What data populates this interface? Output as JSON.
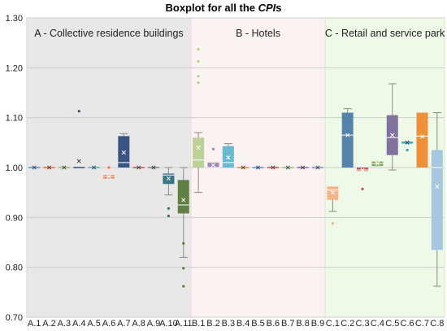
{
  "chart_data": {
    "type": "boxplot",
    "title": {
      "prefix": "Boxplot for all the ",
      "em": "CPI",
      "suffix": "s"
    },
    "ylim": [
      0.7,
      1.3
    ],
    "yticks": [
      "0.70",
      "0.80",
      "0.90",
      "1.00",
      "1.10",
      "1.20",
      "1.30"
    ],
    "grid": true,
    "groups": [
      {
        "label": "A - Collective residence buildings",
        "bg": "#e8e8e8",
        "border": "#d6d6d6",
        "categories": [
          "A.1",
          "A.2",
          "A.3",
          "A.4",
          "A.5",
          "A.6",
          "A.7",
          "A.8",
          "A.9",
          "A.10",
          "A.11"
        ]
      },
      {
        "label": "B - Hotels",
        "bg": "#fbf3f2",
        "border": "#f0dcd9",
        "categories": [
          "B.1",
          "B.2",
          "B.3",
          "B.4",
          "B.5",
          "B.6",
          "B.7",
          "B.8",
          "B.9"
        ]
      },
      {
        "label": "C - Retail and service park",
        "bg": "#eef9e8",
        "border": "#d2efc4",
        "categories": [
          "C.1",
          "C.2",
          "C.3",
          "C.4",
          "C.5",
          "C.6",
          "C.7",
          "C.8"
        ]
      }
    ],
    "series": [
      {
        "cat": "A.1",
        "color": "#5b8bd6",
        "q1": 1.0,
        "median": 1.0,
        "q3": 1.0,
        "whisker_low": 1.0,
        "whisker_high": 1.0,
        "mean": 1.0,
        "outliers": []
      },
      {
        "cat": "A.2",
        "color": "#e06a3a",
        "q1": 1.0,
        "median": 1.0,
        "q3": 1.0,
        "whisker_low": 1.0,
        "whisker_high": 1.0,
        "mean": 1.0,
        "outliers": []
      },
      {
        "cat": "A.3",
        "color": "#9bb87a",
        "q1": 1.0,
        "median": 1.0,
        "q3": 1.0,
        "whisker_low": 1.0,
        "whisker_high": 1.0,
        "mean": 1.0,
        "outliers": []
      },
      {
        "cat": "A.4",
        "color": "#3c4f73",
        "q1": 1.0,
        "median": 1.0,
        "q3": 1.0,
        "whisker_low": 1.0,
        "whisker_high": 1.0,
        "mean": 1.013,
        "outliers": [
          1.113
        ]
      },
      {
        "cat": "A.5",
        "color": "#5aa3c8",
        "q1": 1.0,
        "median": 1.0,
        "q3": 1.0,
        "whisker_low": 1.0,
        "whisker_high": 1.0,
        "mean": 1.0,
        "outliers": []
      },
      {
        "cat": "A.6",
        "color": "#e8803d",
        "q1": 0.978,
        "median": 0.982,
        "q3": 0.985,
        "whisker_low": 0.978,
        "whisker_high": 0.985,
        "mean": 0.982,
        "outliers": [
          1.0
        ]
      },
      {
        "cat": "A.7",
        "color": "#2e4e7e",
        "q1": 1.0,
        "median": 1.01,
        "q3": 1.063,
        "whisker_low": 1.0,
        "whisker_high": 1.068,
        "mean": 1.03,
        "outliers": []
      },
      {
        "cat": "A.8",
        "color": "#c0504d",
        "q1": 1.0,
        "median": 1.0,
        "q3": 1.0,
        "whisker_low": 1.0,
        "whisker_high": 1.0,
        "mean": 1.0,
        "outliers": []
      },
      {
        "cat": "A.9",
        "color": "#7f7f7f",
        "q1": 1.0,
        "median": 1.0,
        "q3": 1.0,
        "whisker_low": 1.0,
        "whisker_high": 1.0,
        "mean": 1.0,
        "outliers": []
      },
      {
        "cat": "A.10",
        "color": "#2f6f7c",
        "q1": 0.967,
        "median": 0.985,
        "q3": 0.988,
        "whisker_low": 0.945,
        "whisker_high": 1.0,
        "mean": 0.978,
        "outliers": [
          0.918,
          0.903
        ]
      },
      {
        "cat": "A.11",
        "color": "#5a7a3a",
        "q1": 0.908,
        "median": 0.925,
        "q3": 0.975,
        "whisker_low": 0.82,
        "whisker_high": 1.0,
        "mean": 0.935,
        "outliers": [
          0.848,
          0.798,
          0.762
        ]
      },
      {
        "cat": "B.1",
        "color": "#b7cf8f",
        "q1": 1.0,
        "median": 1.015,
        "q3": 1.06,
        "whisker_low": 0.95,
        "whisker_high": 1.07,
        "mean": 1.04,
        "outliers": [
          1.237,
          1.213,
          1.183,
          1.17
        ]
      },
      {
        "cat": "B.2",
        "color": "#9b83b7",
        "q1": 1.0,
        "median": 1.0,
        "q3": 1.01,
        "whisker_low": 1.0,
        "whisker_high": 1.01,
        "mean": 1.005,
        "outliers": [
          1.037
        ]
      },
      {
        "cat": "B.3",
        "color": "#5fb7cf",
        "q1": 1.0,
        "median": 1.01,
        "q3": 1.043,
        "whisker_low": 1.0,
        "whisker_high": 1.048,
        "mean": 1.02,
        "outliers": []
      },
      {
        "cat": "B.4",
        "color": "#e8803d",
        "q1": 1.0,
        "median": 1.0,
        "q3": 1.0,
        "whisker_low": 1.0,
        "whisker_high": 1.0,
        "mean": 1.0,
        "outliers": []
      },
      {
        "cat": "B.5",
        "color": "#5b8bd6",
        "q1": 1.0,
        "median": 1.0,
        "q3": 1.0,
        "whisker_low": 1.0,
        "whisker_high": 1.0,
        "mean": 1.0,
        "outliers": []
      },
      {
        "cat": "B.6",
        "color": "#c0504d",
        "q1": 1.0,
        "median": 1.0,
        "q3": 1.0,
        "whisker_low": 1.0,
        "whisker_high": 1.0,
        "mean": 1.0,
        "outliers": []
      },
      {
        "cat": "B.7",
        "color": "#9bb87a",
        "q1": 1.0,
        "median": 1.0,
        "q3": 1.0,
        "whisker_low": 1.0,
        "whisker_high": 1.0,
        "mean": 1.0,
        "outliers": []
      },
      {
        "cat": "B.8",
        "color": "#8064a2",
        "q1": 1.0,
        "median": 1.0,
        "q3": 1.0,
        "whisker_low": 1.0,
        "whisker_high": 1.0,
        "mean": 1.0,
        "outliers": []
      },
      {
        "cat": "B.9",
        "color": "#5aa3c8",
        "q1": 1.0,
        "median": 1.0,
        "q3": 1.0,
        "whisker_low": 1.0,
        "whisker_high": 1.0,
        "mean": 1.0,
        "outliers": []
      },
      {
        "cat": "C.1",
        "color": "#f4b183",
        "q1": 0.935,
        "median": 0.955,
        "q3": 0.962,
        "whisker_low": 0.912,
        "whisker_high": 0.962,
        "mean": 0.95,
        "outliers": [
          0.888
        ]
      },
      {
        "cat": "C.2",
        "color": "#4a7ba7",
        "q1": 1.0,
        "median": 1.065,
        "q3": 1.11,
        "whisker_low": 1.0,
        "whisker_high": 1.118,
        "mean": 1.065,
        "outliers": []
      },
      {
        "cat": "C.3",
        "color": "#c0504d",
        "q1": 0.993,
        "median": 0.995,
        "q3": 1.0,
        "whisker_low": 0.993,
        "whisker_high": 1.0,
        "mean": 0.995,
        "outliers": [
          0.957
        ]
      },
      {
        "cat": "C.4",
        "color": "#77a65a",
        "q1": 1.003,
        "median": 1.008,
        "q3": 1.012,
        "whisker_low": 1.003,
        "whisker_high": 1.012,
        "mean": 1.008,
        "outliers": []
      },
      {
        "cat": "C.5",
        "color": "#7a6a9a",
        "q1": 1.025,
        "median": 1.06,
        "q3": 1.105,
        "whisker_low": 0.995,
        "whisker_high": 1.168,
        "mean": 1.065,
        "outliers": []
      },
      {
        "cat": "C.6",
        "color": "#3aa3b3",
        "q1": 1.048,
        "median": 1.05,
        "q3": 1.052,
        "whisker_low": 1.048,
        "whisker_high": 1.052,
        "mean": 1.05,
        "outliers": [
          1.035
        ]
      },
      {
        "cat": "C.7",
        "color": "#ee8a2e",
        "q1": 1.0,
        "median": 1.063,
        "q3": 1.11,
        "whisker_low": 1.0,
        "whisker_high": 1.11,
        "mean": 1.062,
        "outliers": []
      },
      {
        "cat": "C.8",
        "color": "#9ec5de",
        "q1": 0.835,
        "median": 1.0,
        "q3": 1.035,
        "whisker_low": 0.762,
        "whisker_high": 1.11,
        "mean": 0.962,
        "outliers": []
      }
    ]
  }
}
